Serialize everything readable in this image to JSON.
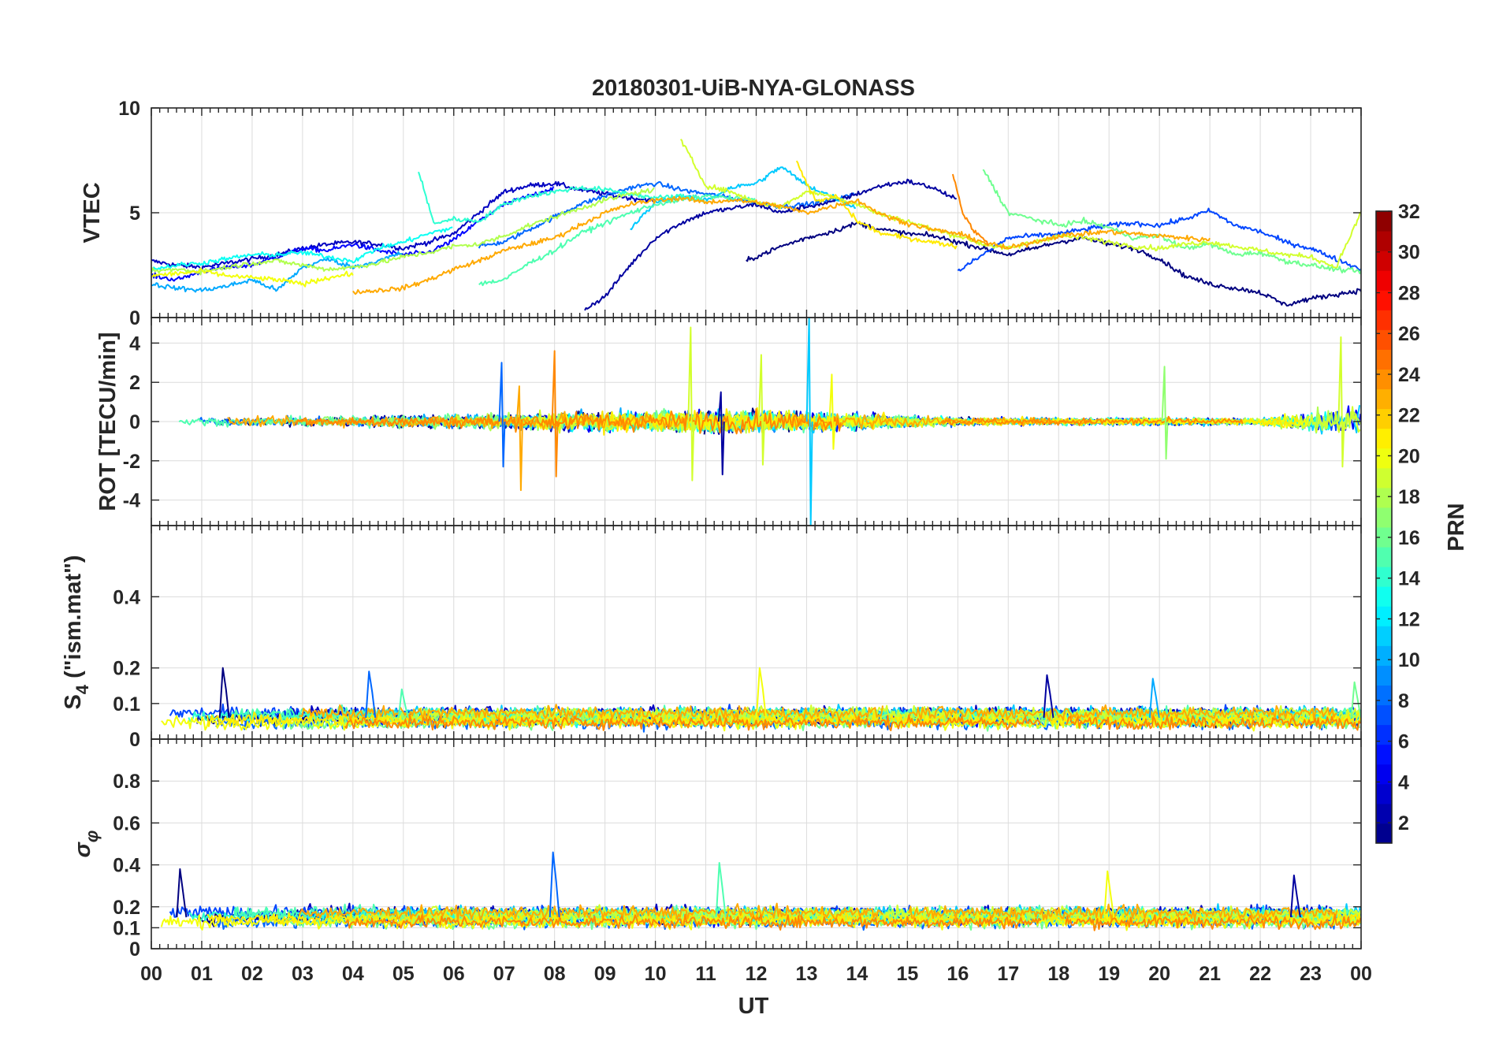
{
  "chart_data": {
    "type": "line",
    "title": "20180301-UiB-NYA-GLONASS",
    "xlabel": "UT",
    "x_ticks": [
      "00",
      "01",
      "02",
      "03",
      "04",
      "05",
      "06",
      "07",
      "08",
      "09",
      "10",
      "11",
      "12",
      "13",
      "14",
      "15",
      "16",
      "17",
      "18",
      "19",
      "20",
      "21",
      "22",
      "23",
      "00"
    ],
    "xlim": [
      0,
      24
    ],
    "panels": [
      {
        "id": "vtec",
        "ylabel": "VTEC",
        "ylim": [
          0,
          10
        ],
        "y_ticks": [
          0,
          5,
          10
        ],
        "y_tick_labels": [
          "0",
          "5",
          "10"
        ],
        "approx_series": [
          {
            "prn": 3,
            "x": [
              0,
              0.5,
              1,
              1.5,
              2,
              2.5,
              3,
              3.5,
              4,
              4.5,
              5,
              5.5,
              6,
              6.5,
              7,
              7.5,
              8,
              8.5,
              9,
              9.5,
              10
            ],
            "y": [
              2.7,
              2.5,
              2.4,
              2.6,
              2.8,
              3.0,
              3.3,
              3.5,
              3.6,
              3.5,
              3.3,
              3.6,
              4.0,
              5.0,
              6.0,
              6.3,
              6.4,
              6.1,
              5.9,
              5.7,
              5.6
            ]
          },
          {
            "prn": 5,
            "x": [
              0,
              0.5,
              1,
              1.5,
              2,
              2.5,
              3,
              3.5,
              4,
              4.5,
              5,
              5.5,
              6,
              6.5,
              7,
              7.5,
              8
            ],
            "y": [
              2.0,
              1.8,
              2.2,
              2.4,
              2.5,
              2.9,
              3.3,
              3.2,
              3.5,
              3.2,
              3.0,
              3.1,
              3.7,
              4.6,
              5.4,
              5.8,
              6.2
            ]
          },
          {
            "prn": 8,
            "x": [
              6.5,
              7,
              7.5,
              8,
              8.5,
              9,
              9.5,
              10,
              10.5,
              11,
              11.5,
              12,
              12.5,
              13,
              13.5,
              14
            ],
            "y": [
              3.4,
              3.6,
              4.2,
              4.8,
              5.4,
              5.8,
              6.2,
              6.4,
              6.1,
              5.9,
              5.7,
              5.5,
              5.3,
              5.4,
              5.6,
              5.9
            ]
          },
          {
            "prn": 2,
            "x": [
              8.6,
              9,
              9.5,
              10,
              10.5,
              11,
              11.5,
              12,
              12.5,
              13,
              13.5,
              14,
              14.5,
              15,
              15.5,
              16
            ],
            "y": [
              0.4,
              1.0,
              2.5,
              3.8,
              4.5,
              5.0,
              5.2,
              5.4,
              5.0,
              5.3,
              5.5,
              5.9,
              6.3,
              6.5,
              6.2,
              5.6
            ]
          },
          {
            "prn": 1,
            "x": [
              11.8,
              12.5,
              13,
              13.5,
              14,
              14.5,
              15,
              15.5,
              16,
              16.5,
              17,
              17.5,
              18,
              18.5,
              19,
              19.5,
              20,
              20.5,
              21,
              21.5,
              22,
              22.5,
              23,
              23.5,
              24
            ],
            "y": [
              2.7,
              3.4,
              3.8,
              4.1,
              4.5,
              4.2,
              4.0,
              3.9,
              3.6,
              3.3,
              3.0,
              3.3,
              3.6,
              3.8,
              3.5,
              3.3,
              2.8,
              2.0,
              1.6,
              1.4,
              1.2,
              0.6,
              0.9,
              1.1,
              1.3
            ]
          },
          {
            "prn": 7,
            "x": [
              16,
              16.5,
              17,
              17.5,
              18,
              18.5,
              19,
              19.5,
              20,
              20.5,
              21,
              21.5,
              22,
              22.5,
              23,
              23.5,
              24
            ],
            "y": [
              2.2,
              3.0,
              3.8,
              3.9,
              4.0,
              4.2,
              4.4,
              4.5,
              4.4,
              4.7,
              5.1,
              4.4,
              4.1,
              3.6,
              3.3,
              2.8,
              2.3
            ]
          },
          {
            "prn": 10,
            "x": [
              0,
              0.5,
              1,
              1.5,
              2,
              2.5,
              3,
              3.5,
              4,
              4.5,
              5
            ],
            "y": [
              1.6,
              1.4,
              1.3,
              1.5,
              1.8,
              1.3,
              2.4,
              2.8,
              2.4,
              2.7,
              3.1
            ]
          },
          {
            "prn": 11,
            "x": [
              9.5,
              10,
              10.5,
              11,
              11.5,
              12,
              12.5,
              13,
              13.5,
              14
            ],
            "y": [
              4.2,
              5.5,
              5.8,
              5.6,
              6.2,
              6.4,
              7.2,
              6.3,
              5.8,
              5.2
            ]
          },
          {
            "prn": 13,
            "x": [
              0,
              0.5,
              1,
              1.5,
              2,
              2.5,
              3,
              3.5,
              4,
              4.5,
              5,
              5.5,
              6
            ],
            "y": [
              2.3,
              2.5,
              2.6,
              2.8,
              3.0,
              3.0,
              3.1,
              2.9,
              2.7,
              3.3,
              3.6,
              4.0,
              4.3
            ]
          },
          {
            "prn": 14,
            "x": [
              5.3,
              5.6,
              6,
              6.5,
              7,
              7.5,
              8,
              8.5,
              9,
              9.5,
              10,
              10.5,
              11
            ],
            "y": [
              7.0,
              4.5,
              4.7,
              4.6,
              5.4,
              5.8,
              6.0,
              6.2,
              6.1,
              5.9,
              5.7,
              5.8,
              5.6
            ]
          },
          {
            "prn": 15,
            "x": [
              6.5,
              7,
              7.5,
              8,
              8.5,
              9,
              9.5,
              10,
              10.5,
              11,
              11.5,
              12
            ],
            "y": [
              1.6,
              1.8,
              2.6,
              3.2,
              4.0,
              4.5,
              5.0,
              5.4,
              5.6,
              5.8,
              5.7,
              5.6
            ]
          },
          {
            "prn": 16,
            "x": [
              16.5,
              17,
              17.5,
              18,
              18.5,
              19,
              19.5,
              20,
              20.5,
              21,
              21.5,
              22,
              22.5,
              23,
              23.5,
              24
            ],
            "y": [
              7.1,
              5.0,
              4.7,
              4.4,
              4.6,
              4.3,
              3.8,
              3.9,
              3.3,
              3.5,
              3.0,
              3.1,
              2.7,
              2.5,
              2.3,
              2.2
            ]
          },
          {
            "prn": 18,
            "x": [
              0,
              0.5,
              1,
              1.5,
              2,
              2.5,
              3,
              3.5,
              4,
              4.5,
              5,
              5.5,
              6,
              6.5,
              7,
              7.5,
              8,
              8.5,
              9,
              9.5,
              10
            ],
            "y": [
              2.2,
              2.3,
              2.2,
              2.4,
              2.6,
              2.7,
              2.5,
              2.3,
              2.4,
              2.6,
              2.9,
              3.1,
              3.4,
              3.5,
              3.9,
              4.4,
              4.8,
              5.2,
              5.6,
              5.9,
              6.1
            ]
          },
          {
            "prn": 19,
            "x": [
              10.5,
              11,
              11.5,
              12,
              12.5,
              13,
              13.5,
              14,
              14.5,
              15,
              15.5,
              16,
              16.5,
              17,
              17.5,
              18,
              18.5,
              19,
              19.5,
              20,
              20.5,
              21,
              21.5,
              22,
              22.5,
              23,
              23.5,
              24
            ],
            "y": [
              8.5,
              6.3,
              6.0,
              5.5,
              5.3,
              6.0,
              5.8,
              5.4,
              4.9,
              4.6,
              4.2,
              3.9,
              3.5,
              3.3,
              3.6,
              3.9,
              3.8,
              3.6,
              3.4,
              3.3,
              3.5,
              3.6,
              3.4,
              3.2,
              3.0,
              2.9,
              2.4,
              5.0
            ]
          },
          {
            "prn": 20,
            "x": [
              0,
              0.5,
              1,
              1.5,
              2,
              2.5,
              3,
              3.5,
              4
            ],
            "y": [
              2.0,
              2.1,
              2.2,
              2.0,
              1.9,
              1.8,
              1.6,
              1.9,
              2.1
            ]
          },
          {
            "prn": 21,
            "x": [
              12.8,
              13.2,
              13.6,
              14,
              14.5,
              15,
              15.5,
              16
            ],
            "y": [
              7.4,
              5.5,
              5.8,
              4.6,
              4.0,
              3.8,
              3.6,
              3.4
            ]
          },
          {
            "prn": 23,
            "x": [
              4,
              4.5,
              5,
              5.5,
              6,
              6.5,
              7,
              7.5,
              8,
              8.5,
              9,
              9.5,
              10,
              10.5,
              11,
              11.5,
              12,
              12.5,
              13,
              13.5,
              14,
              14.5,
              15,
              15.5,
              16,
              16.5,
              17,
              17.5,
              18,
              18.5,
              19,
              19.5,
              20,
              20.5,
              21
            ],
            "y": [
              1.2,
              1.3,
              1.4,
              1.8,
              2.3,
              2.7,
              3.2,
              3.5,
              3.8,
              4.4,
              5.0,
              5.4,
              5.6,
              5.7,
              5.5,
              5.6,
              5.5,
              5.3,
              5.0,
              5.3,
              5.6,
              4.9,
              4.5,
              4.2,
              4.0,
              3.6,
              3.3,
              3.6,
              3.9,
              4.0,
              4.1,
              4.0,
              3.9,
              3.8,
              3.7
            ]
          },
          {
            "prn": 24,
            "x": [
              15.9,
              16.1,
              16.3,
              16.6
            ],
            "y": [
              6.9,
              5.0,
              4.2,
              3.5
            ]
          }
        ]
      },
      {
        "id": "rot",
        "ylabel": "ROT [TECU/min]",
        "ylim": [
          -5.3,
          5.3
        ],
        "y_ticks": [
          -4,
          -2,
          0,
          2,
          4
        ],
        "y_tick_labels": [
          "-4",
          "-2",
          "0",
          "2",
          "4"
        ],
        "approx_spikes": [
          {
            "prn": 8,
            "x": 6.95,
            "y": [
              3.0,
              -2.3
            ]
          },
          {
            "prn": 23,
            "x": 7.3,
            "y": [
              1.8,
              -3.5
            ]
          },
          {
            "prn": 24,
            "x": 8.0,
            "y": [
              3.6,
              -2.8
            ]
          },
          {
            "prn": 19,
            "x": 10.7,
            "y": [
              4.8,
              -3.0
            ]
          },
          {
            "prn": 2,
            "x": 11.3,
            "y": [
              1.5,
              -2.7
            ]
          },
          {
            "prn": 19,
            "x": 12.1,
            "y": [
              3.4,
              -2.2
            ]
          },
          {
            "prn": 11,
            "x": 13.05,
            "y": [
              5.3,
              -5.3
            ]
          },
          {
            "prn": 20,
            "x": 13.5,
            "y": [
              2.4,
              -1.4
            ]
          },
          {
            "prn": 17,
            "x": 20.1,
            "y": [
              2.8,
              -1.9
            ]
          },
          {
            "prn": 19,
            "x": 23.6,
            "y": [
              4.3,
              -2.3
            ]
          }
        ],
        "noise_envelope": {
          "x": [
            0,
            2,
            4,
            6,
            8,
            10,
            12,
            14,
            16,
            18,
            20,
            22,
            24
          ],
          "amplitude": [
            0.3,
            0.4,
            0.45,
            0.6,
            0.8,
            0.9,
            1.0,
            0.7,
            0.35,
            0.3,
            0.35,
            0.3,
            1.5
          ]
        }
      },
      {
        "id": "s4",
        "ylabel": "S4 (\"ism.mat\")",
        "ylabel_main": "S",
        "ylabel_sub": "4",
        "ylabel_rest": " (\"ism.mat\")",
        "ylim": [
          0,
          0.6
        ],
        "y_ticks": [
          0,
          0.1,
          0.2,
          0.4
        ],
        "y_tick_labels": [
          "0",
          "0.1",
          "0.2",
          "0.4"
        ],
        "baseline": 0.06,
        "approx_peaks": [
          {
            "x": 1.45,
            "y": 0.2
          },
          {
            "x": 4.35,
            "y": 0.19
          },
          {
            "x": 5.0,
            "y": 0.14
          },
          {
            "x": 12.1,
            "y": 0.2
          },
          {
            "x": 17.8,
            "y": 0.18
          },
          {
            "x": 19.9,
            "y": 0.17
          },
          {
            "x": 23.9,
            "y": 0.16
          }
        ]
      },
      {
        "id": "sigma",
        "ylabel": "σφ",
        "ylabel_main": "σ",
        "ylabel_sub": "φ",
        "ylim": [
          0,
          1
        ],
        "y_ticks": [
          0,
          0.1,
          0.2,
          0.4,
          0.6,
          0.8
        ],
        "y_tick_labels": [
          "0",
          "0.1",
          "0.2",
          "0.4",
          "0.6",
          "0.8"
        ],
        "baseline": 0.15,
        "approx_peaks": [
          {
            "x": 0.6,
            "y": 0.38
          },
          {
            "x": 8.0,
            "y": 0.46
          },
          {
            "x": 11.3,
            "y": 0.41
          },
          {
            "x": 19.0,
            "y": 0.37
          },
          {
            "x": 22.7,
            "y": 0.35
          }
        ]
      }
    ],
    "colorbar": {
      "label": "PRN",
      "range": [
        1,
        32
      ],
      "ticks": [
        2,
        4,
        6,
        8,
        10,
        12,
        14,
        16,
        18,
        20,
        22,
        24,
        26,
        28,
        30,
        32
      ],
      "colormap": "jet",
      "colors": [
        "#00008f",
        "#0000ff",
        "#0080ff",
        "#00ffff",
        "#80ff80",
        "#ffff00",
        "#ff8000",
        "#ff0000",
        "#800000"
      ]
    }
  }
}
